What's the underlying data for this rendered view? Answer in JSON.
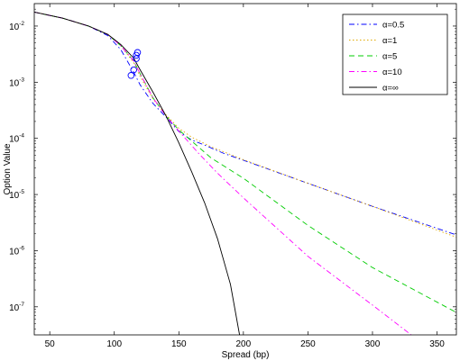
{
  "chart_data": {
    "type": "line",
    "title": "",
    "xlabel": "Spread (bp)",
    "ylabel": "Option Value",
    "xlim": [
      38,
      365
    ],
    "ylim_log10": [
      -7.5,
      -1.6
    ],
    "yscale": "log",
    "grid": false,
    "legend_position": "top-right",
    "x_ticks": [
      "50",
      "100",
      "150",
      "200",
      "250",
      "300",
      "350"
    ],
    "x_tick_values": [
      50,
      100,
      150,
      200,
      250,
      300,
      350
    ],
    "y_tick_exponents": [
      -2,
      -3,
      -4,
      -5,
      -6,
      -7
    ],
    "y_tick_base": "10",
    "y_tick_labels": [
      "-2",
      "-3",
      "-4",
      "-5",
      "-6",
      "-7"
    ],
    "series": [
      {
        "name": "α=0.5",
        "color": "#0000ff",
        "dash": "dashdot",
        "points": [
          [
            38,
            -1.75
          ],
          [
            60,
            -1.86
          ],
          [
            80,
            -2.0
          ],
          [
            95,
            -2.17
          ],
          [
            105,
            -2.42
          ],
          [
            115,
            -2.82
          ],
          [
            120,
            -3.05
          ],
          [
            130,
            -3.38
          ],
          [
            140,
            -3.62
          ],
          [
            150,
            -3.88
          ],
          [
            160,
            -4.03
          ],
          [
            170,
            -4.12
          ],
          [
            185,
            -4.27
          ],
          [
            200,
            -4.39
          ],
          [
            250,
            -4.8
          ],
          [
            300,
            -5.21
          ],
          [
            365,
            -5.72
          ]
        ]
      },
      {
        "name": "α=1",
        "color": "#e0a800",
        "dash": "dotted",
        "points": [
          [
            38,
            -1.75
          ],
          [
            60,
            -1.86
          ],
          [
            80,
            -2.0
          ],
          [
            95,
            -2.15
          ],
          [
            105,
            -2.35
          ],
          [
            115,
            -2.65
          ],
          [
            120,
            -2.9
          ],
          [
            130,
            -3.3
          ],
          [
            140,
            -3.58
          ],
          [
            150,
            -3.82
          ],
          [
            160,
            -3.98
          ],
          [
            175,
            -4.15
          ],
          [
            200,
            -4.38
          ],
          [
            250,
            -4.8
          ],
          [
            300,
            -5.21
          ],
          [
            365,
            -5.76
          ]
        ]
      },
      {
        "name": "α=5",
        "color": "#00cc00",
        "dash": "dashed",
        "points": [
          [
            38,
            -1.75
          ],
          [
            60,
            -1.86
          ],
          [
            80,
            -2.0
          ],
          [
            95,
            -2.15
          ],
          [
            105,
            -2.35
          ],
          [
            115,
            -2.62
          ],
          [
            120,
            -2.85
          ],
          [
            130,
            -3.28
          ],
          [
            140,
            -3.6
          ],
          [
            150,
            -3.85
          ],
          [
            160,
            -4.05
          ],
          [
            175,
            -4.35
          ],
          [
            200,
            -4.71
          ],
          [
            250,
            -5.55
          ],
          [
            300,
            -6.3
          ],
          [
            365,
            -7.1
          ]
        ]
      },
      {
        "name": "α=10",
        "color": "#ff00ff",
        "dash": "dashdot",
        "points": [
          [
            38,
            -1.75
          ],
          [
            60,
            -1.86
          ],
          [
            80,
            -2.0
          ],
          [
            95,
            -2.15
          ],
          [
            105,
            -2.35
          ],
          [
            115,
            -2.62
          ],
          [
            120,
            -2.85
          ],
          [
            130,
            -3.28
          ],
          [
            140,
            -3.6
          ],
          [
            150,
            -3.87
          ],
          [
            165,
            -4.26
          ],
          [
            180,
            -4.62
          ],
          [
            200,
            -5.06
          ],
          [
            250,
            -6.1
          ],
          [
            300,
            -6.97
          ],
          [
            330,
            -7.5
          ]
        ]
      },
      {
        "name": "α=∞",
        "color": "#000000",
        "dash": "solid",
        "points": [
          [
            38,
            -1.75
          ],
          [
            60,
            -1.86
          ],
          [
            80,
            -2.0
          ],
          [
            95,
            -2.15
          ],
          [
            105,
            -2.33
          ],
          [
            115,
            -2.57
          ],
          [
            120,
            -2.78
          ],
          [
            130,
            -3.18
          ],
          [
            140,
            -3.6
          ],
          [
            150,
            -4.08
          ],
          [
            160,
            -4.6
          ],
          [
            170,
            -5.15
          ],
          [
            180,
            -5.79
          ],
          [
            190,
            -6.6
          ],
          [
            197,
            -7.5
          ]
        ]
      }
    ],
    "markers": {
      "shape": "circle",
      "color": "#0000ff",
      "points": [
        [
          113,
          -2.88
        ],
        [
          115,
          -2.78
        ],
        [
          117,
          -2.58
        ],
        [
          117,
          -2.52
        ],
        [
          118,
          -2.47
        ]
      ]
    }
  }
}
